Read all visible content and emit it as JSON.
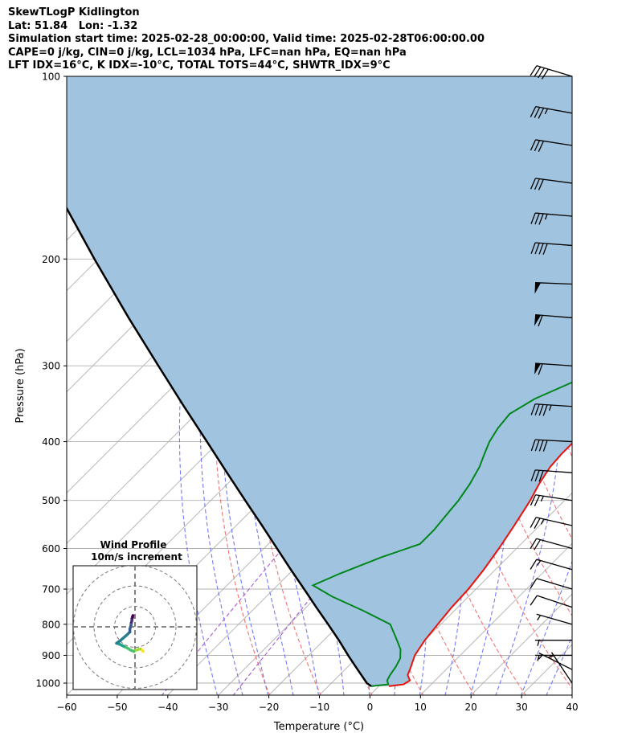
{
  "header": {
    "line1": "SkewTLogP Kidlington",
    "line2": "Lat: 51.84   Lon: -1.32",
    "line3": "Simulation start time: 2025-02-28_00:00:00, Valid time: 2025-02-28T06:00:00.00",
    "line4": "CAPE=0 j/kg, CIN=0 j/kg, LCL=1034 hPa, LFC=nan hPa, EQ=nan hPa",
    "line5": "LFT IDX=16$^\\circ$C, K IDX=-10$^\\circ$C, TOTAL TOTS=44$^\\circ$C, SHWTR_IDX=9$^\\circ$C"
  },
  "chart_data": {
    "type": "line",
    "subtype": "skew-T log-P diagram",
    "xlabel": "Temperature ($^\\circ$C)",
    "ylabel": "Pressure (hPa)",
    "xlim": [
      -60,
      40
    ],
    "ylim": [
      1050,
      100
    ],
    "y_scale": "log",
    "x_ticks": [
      "−60",
      "−50",
      "−40",
      "−30",
      "−20",
      "−10",
      "0",
      "10",
      "20",
      "30",
      "40"
    ],
    "y_ticks": [
      "100",
      "200",
      "300",
      "400",
      "500",
      "600",
      "700",
      "800",
      "900",
      "1000"
    ],
    "grid": true,
    "colors": {
      "temperature": "#e8120f",
      "dewpoint": "#00861b",
      "parcel": "#000000",
      "cape_fill": "#a0c4df",
      "dry_adiabats": "#f26d6d",
      "moist_adiabats": "#6e73f2",
      "mixing_ratio": "#a55ad2",
      "isotherms": "#b0b0b0"
    },
    "series": [
      {
        "key": "temperature",
        "p": [
          1012,
          1005,
          990,
          970,
          940,
          900,
          850,
          800,
          750,
          700,
          650,
          600,
          550,
          500,
          470,
          440,
          420,
          400,
          380,
          360,
          340,
          320,
          300,
          280,
          260,
          240,
          220,
          210,
          200,
          190,
          180,
          170,
          160,
          150,
          140,
          130,
          120,
          110,
          100
        ],
        "t": [
          2.0,
          4.5,
          5.0,
          3.5,
          2.5,
          1.0,
          0.0,
          -0.6,
          -1.2,
          -1.5,
          -2.3,
          -3.5,
          -5.0,
          -6.8,
          -8.3,
          -9.5,
          -9.8,
          -9.8,
          -8.0,
          -6.6,
          -5.2,
          -5.5,
          -6.5,
          -7.7,
          -9.0,
          -10.2,
          -11.2,
          -11.0,
          -9.7,
          -7.8,
          -5.5,
          -3.8,
          -2.0,
          -0.6,
          0.4,
          1.2,
          1.8,
          2.4,
          2.8
        ]
      },
      {
        "key": "dewpoint",
        "p": [
          1012,
          1005,
          990,
          970,
          940,
          910,
          880,
          850,
          800,
          760,
          720,
          690,
          660,
          620,
          590,
          560,
          530,
          500,
          470,
          440,
          420,
          400,
          380,
          360,
          340,
          320,
          310,
          300,
          280,
          260,
          240,
          220,
          210,
          200,
          190,
          180,
          170,
          160,
          150,
          140,
          130,
          120,
          110,
          100
        ],
        "t": [
          -1.5,
          1.5,
          0.5,
          0.0,
          -0.5,
          -1.3,
          -3.0,
          -5.5,
          -10.0,
          -18.0,
          -27.0,
          -33.0,
          -30.0,
          -25.0,
          -20.0,
          -20.0,
          -20.5,
          -21.0,
          -22.0,
          -23.5,
          -25.0,
          -26.5,
          -27.5,
          -28.0,
          -26.0,
          -22.0,
          -20.0,
          -19.0,
          -18.8,
          -18.5,
          -18.5,
          -18.8,
          -19.5,
          -20.5,
          -20.0,
          -20.0,
          -21.0,
          -21.0,
          -19.5,
          -17.5,
          -16.0,
          -14.0,
          -12.0,
          -10.0
        ]
      },
      {
        "key": "parcel",
        "p": [
          1012,
          1000,
          950,
          900,
          850,
          800,
          750,
          700,
          650,
          600,
          550,
          500,
          450,
          400,
          350,
          300,
          250,
          200,
          150,
          100
        ],
        "t": [
          -1.5,
          -3.0,
          -7.5,
          -12.2,
          -17.0,
          -22.3,
          -28.0,
          -34.0,
          -40.5,
          -47.4,
          -54.9,
          -63.2,
          -72.3,
          -82.4,
          -93.9,
          -107.0,
          -122.4,
          -140.8,
          -164.0,
          -196.0
        ]
      }
    ],
    "isotherms_c": [
      -160,
      -150,
      -140,
      -130,
      -120,
      -110,
      -100,
      -90,
      -80,
      -70,
      -60,
      -50,
      -40,
      -30,
      -20,
      -10,
      0,
      10,
      20,
      30,
      40
    ],
    "dry_adiabats_k": [
      250,
      260,
      270,
      280,
      290,
      300,
      310,
      320,
      330,
      340,
      350,
      360,
      370,
      380
    ],
    "moist_adiabats_c": [
      -30,
      -25,
      -20,
      -15,
      -10,
      -5,
      0,
      5,
      10,
      15,
      20,
      25,
      30,
      35,
      40
    ],
    "mixing_ratio_gkg": [
      0.1,
      0.4
    ],
    "wind_barbs": {
      "x_c": 40,
      "p": [
        1000,
        950,
        900,
        850,
        800,
        750,
        700,
        650,
        600,
        550,
        500,
        450,
        400,
        350,
        300,
        250,
        220,
        190,
        170,
        150,
        130,
        115,
        100
      ],
      "u_kt": [
        -2,
        -4,
        -5,
        -6,
        -7,
        -9,
        -10,
        -14,
        -18,
        -22,
        -26,
        -28,
        -38,
        -45,
        -58,
        -60,
        -50,
        -40,
        -35,
        -30,
        -32,
        -33,
        -40
      ],
      "v_kt": [
        3,
        2,
        0,
        0,
        2,
        3,
        3,
        4,
        5,
        5,
        4,
        2,
        2,
        3,
        4,
        5,
        2,
        3,
        3,
        4,
        5,
        6,
        12
      ]
    }
  },
  "inset": {
    "title_line1": "Wind Profile",
    "title_line2": "10m/s increment",
    "ring_count": 3,
    "u_ms": [
      4,
      3.5,
      3,
      2.5,
      1,
      0,
      -0.5,
      -1.8,
      -3.5,
      -5.5,
      -7.5,
      -9,
      -7.5,
      -4,
      -2.5,
      -2.5,
      -2,
      -1.8,
      -1.5,
      -1.5,
      -1.2,
      -1.2,
      -1.0
    ],
    "v_ms": [
      -12,
      -11.5,
      -11,
      -10.8,
      -11.2,
      -11.5,
      -12,
      -11.5,
      -10.5,
      -9.5,
      -8.5,
      -8,
      -7,
      -4,
      -2.5,
      -1,
      0.5,
      2,
      3,
      4,
      4.5,
      5,
      5.5
    ],
    "colormap": [
      "#fde725",
      "#a0da39",
      "#4ac16d",
      "#1fa187",
      "#277f8e",
      "#365c8d",
      "#46327e",
      "#440154"
    ]
  }
}
